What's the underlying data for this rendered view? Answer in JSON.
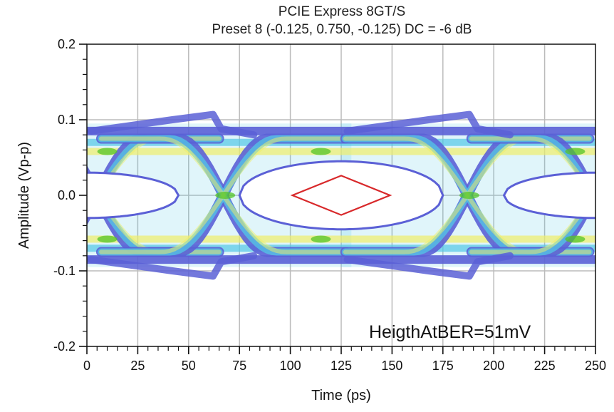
{
  "chart_data": {
    "type": "eye-diagram",
    "title": "PCIE Express 8GT/S",
    "subtitle": "Preset 8 (-0.125, 0.750, -0.125) DC = -6 dB",
    "xlabel": "Time (ps)",
    "ylabel": "Amplitude (Vp-p)",
    "xlim": [
      0,
      250
    ],
    "ylim": [
      -0.2,
      0.2
    ],
    "x_ticks": [
      0,
      25,
      50,
      75,
      100,
      125,
      150,
      175,
      200,
      225,
      250
    ],
    "x_tick_labels": [
      "0",
      "25",
      "50",
      "75",
      "100",
      "125",
      "150",
      "175",
      "200",
      "225",
      "250"
    ],
    "y_ticks": [
      0.2,
      0.1,
      0.0,
      -0.1,
      -0.2
    ],
    "y_tick_labels": [
      "0.2",
      "0.1",
      "0.0",
      "-0.1",
      "-0.2"
    ],
    "grid": true,
    "annotation": "HeigthAtBER=51mV",
    "eye_mask": {
      "points": [
        [
          101,
          0.0
        ],
        [
          125,
          0.026
        ],
        [
          149,
          0.0
        ],
        [
          125,
          -0.026
        ]
      ],
      "color": "#d8282a"
    },
    "eye_levels": {
      "outer_high": 0.1,
      "outer_low": -0.1,
      "inner_high": 0.055,
      "inner_low": -0.055,
      "crossing_time": [
        5,
        67,
        187,
        249
      ]
    },
    "colors": {
      "density_low": "#5b60d6",
      "density_mid": "#53c7e6",
      "density_high": "#f0ee6a",
      "density_peak": "#53c428",
      "axis": "#111111",
      "grid": "#bbbbbb"
    }
  }
}
